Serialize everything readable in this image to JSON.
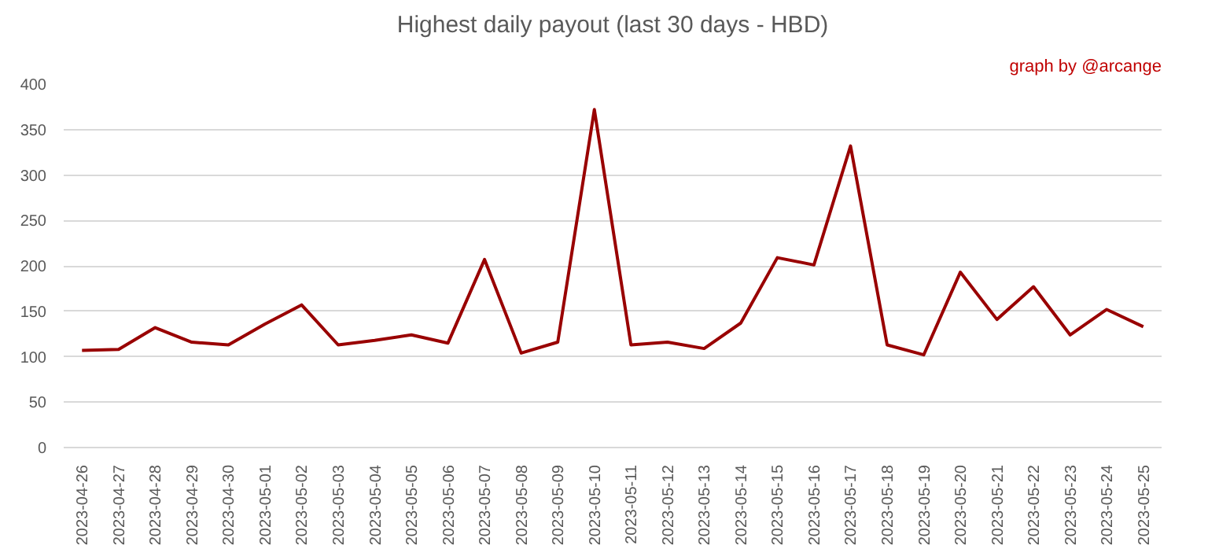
{
  "chart_data": {
    "type": "line",
    "title": "Highest daily payout (last 30 days - HBD)",
    "annotations": [
      "graph by @arcange"
    ],
    "categories": [
      "2023-04-26",
      "2023-04-27",
      "2023-04-28",
      "2023-04-29",
      "2023-04-30",
      "2023-05-01",
      "2023-05-02",
      "2023-05-03",
      "2023-05-04",
      "2023-05-05",
      "2023-05-06",
      "2023-05-07",
      "2023-05-08",
      "2023-05-09",
      "2023-05-10",
      "2023-05-11",
      "2023-05-12",
      "2023-05-13",
      "2023-05-14",
      "2023-05-15",
      "2023-05-16",
      "2023-05-17",
      "2023-05-18",
      "2023-05-19",
      "2023-05-20",
      "2023-05-21",
      "2023-05-22",
      "2023-05-23",
      "2023-05-24",
      "2023-05-25"
    ],
    "series": [
      {
        "color": "#990000",
        "values": [
          107,
          108,
          132,
          116,
          113,
          136,
          157,
          113,
          118,
          124,
          115,
          207,
          104,
          116,
          372,
          113,
          116,
          109,
          137,
          209,
          201,
          332,
          113,
          102,
          193,
          141,
          177,
          124,
          152,
          133
        ]
      }
    ],
    "ylim": [
      0,
      400
    ],
    "yticks": [
      0,
      50,
      100,
      150,
      200,
      250,
      300,
      350,
      400
    ],
    "grid": "y",
    "marker": "none",
    "line_style": "solid"
  }
}
